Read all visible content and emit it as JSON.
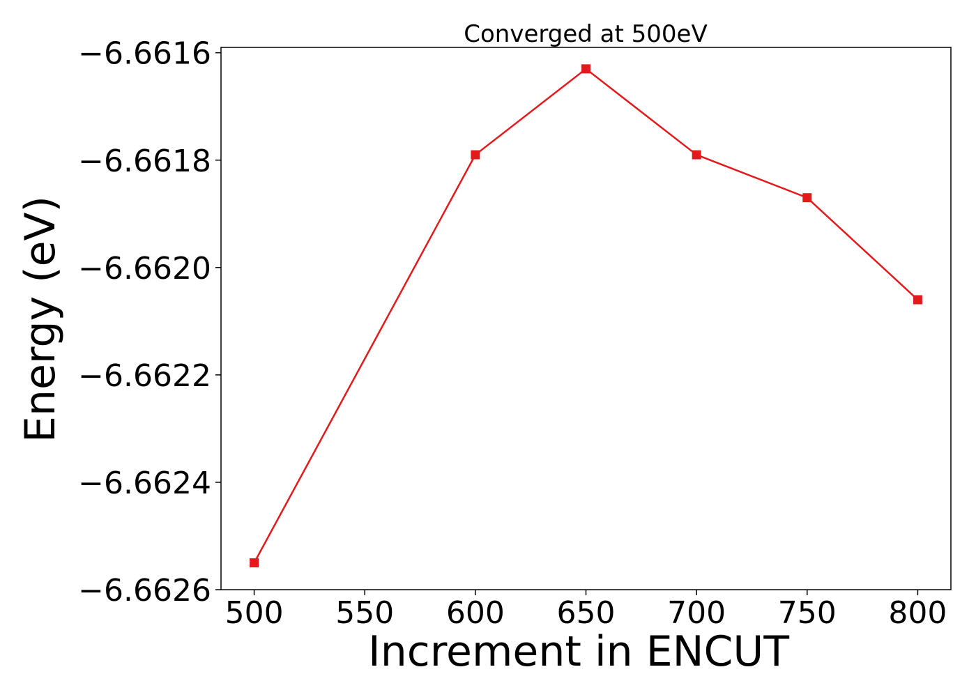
{
  "chart_data": {
    "type": "line",
    "title": "Converged at 500eV",
    "xlabel": "Increment in ENCUT",
    "ylabel": "Energy (eV)",
    "x": [
      500,
      600,
      650,
      700,
      750,
      800
    ],
    "series": [
      {
        "values": [
          -6.66255,
          -6.66179,
          -6.66163,
          -6.66179,
          -6.66187,
          -6.66206
        ],
        "color": "#e31a1c",
        "marker": "square"
      }
    ],
    "xlim": [
      485,
      815
    ],
    "ylim": [
      -6.6626,
      -6.66159
    ],
    "xticks": [
      500,
      550,
      600,
      650,
      700,
      750,
      800
    ],
    "xtick_labels": [
      "500",
      "550",
      "600",
      "650",
      "700",
      "750",
      "800"
    ],
    "yticks": [
      -6.6626,
      -6.6624,
      -6.6622,
      -6.662,
      -6.6618,
      -6.6616
    ],
    "ytick_labels": [
      "−6.6626",
      "−6.6624",
      "−6.6622",
      "−6.6620",
      "−6.6618",
      "−6.6616"
    ],
    "grid": false,
    "legend": "none"
  }
}
